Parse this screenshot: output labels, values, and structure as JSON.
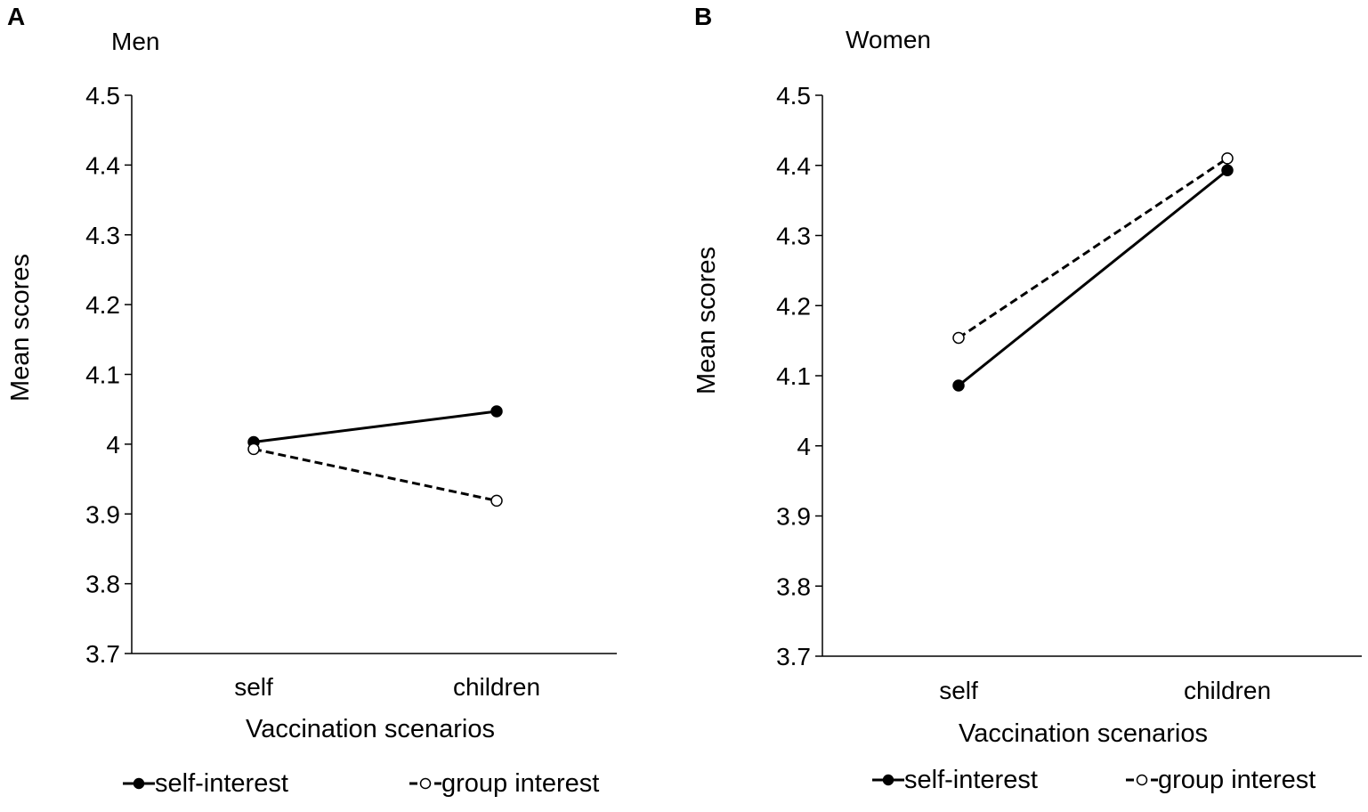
{
  "colors": {
    "series_line": "#000000",
    "axis": "#000000",
    "open_marker_fill": "#ffffff"
  },
  "chart_data": [
    {
      "panel_label": "A",
      "type": "line",
      "title": "Men",
      "xlabel": "Vaccination scenarios",
      "ylabel": "Mean scores",
      "categories": [
        "self",
        "children"
      ],
      "ylim": [
        3.7,
        4.5
      ],
      "yticks": [
        3.7,
        3.8,
        3.9,
        4,
        4.1,
        4.2,
        4.3,
        4.4,
        4.5
      ],
      "ytick_labels": [
        "3.7",
        "3.8",
        "3.9",
        "4",
        "4.1",
        "4.2",
        "4.3",
        "4.4",
        "4.5"
      ],
      "grid": false,
      "legend_position": "bottom",
      "series": [
        {
          "name": "self-interest",
          "style": "solid",
          "marker": "filled-circle",
          "values": [
            4.003,
            4.047
          ]
        },
        {
          "name": "group interest",
          "style": "dashed",
          "marker": "open-circle",
          "values": [
            3.993,
            3.919
          ]
        }
      ]
    },
    {
      "panel_label": "B",
      "type": "line",
      "title": "Women",
      "xlabel": "Vaccination scenarios",
      "ylabel": "Mean scores",
      "categories": [
        "self",
        "children"
      ],
      "ylim": [
        3.7,
        4.5
      ],
      "yticks": [
        3.7,
        3.8,
        3.9,
        4,
        4.1,
        4.2,
        4.3,
        4.4,
        4.5
      ],
      "ytick_labels": [
        "3.7",
        "3.8",
        "3.9",
        "4",
        "4.1",
        "4.2",
        "4.3",
        "4.4",
        "4.5"
      ],
      "grid": false,
      "legend_position": "bottom",
      "series": [
        {
          "name": "self-interest",
          "style": "solid",
          "marker": "filled-circle",
          "values": [
            4.086,
            4.393
          ]
        },
        {
          "name": "group interest",
          "style": "dashed",
          "marker": "open-circle",
          "values": [
            4.154,
            4.41
          ]
        }
      ]
    }
  ]
}
